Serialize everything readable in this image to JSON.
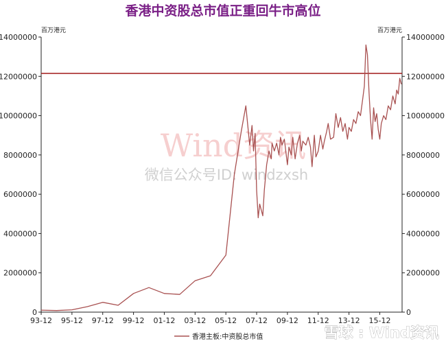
{
  "chart_data": {
    "type": "line",
    "title": "香港中资股总市值正重回牛市高位",
    "unit_left": "百万港元",
    "unit_right": "百万港元",
    "ylim": [
      0,
      14000000
    ],
    "y_ticks": [
      0,
      2000000,
      4000000,
      6000000,
      8000000,
      10000000,
      12000000,
      14000000
    ],
    "y_tick_labels": [
      "0",
      "2000000",
      "4000000",
      "6000000",
      "8000000",
      "10000000",
      "12000000",
      "14000000"
    ],
    "x_tick_labels": [
      "93-12",
      "95-12",
      "97-12",
      "99-12",
      "01-12",
      "03-12",
      "05-12",
      "07-12",
      "09-12",
      "11-12",
      "13-12",
      "15-12"
    ],
    "x_range": [
      1993.95,
      2017.4
    ],
    "reference_line": {
      "value": 12150000,
      "color": "#a01818"
    },
    "series": [
      {
        "name": "香港主板:中资股总市值",
        "color": "#a85050",
        "x": [
          1993.95,
          1994.95,
          1995.95,
          1996.95,
          1997.95,
          1998.95,
          1999.95,
          2000.95,
          2001.95,
          2002.95,
          2003.95,
          2004.95,
          2005.95,
          2006.5,
          2006.95,
          2007.25,
          2007.5,
          2007.65,
          2007.75,
          2007.85,
          2007.95,
          2008.05,
          2008.15,
          2008.35,
          2008.45,
          2008.6,
          2008.75,
          2008.9,
          2008.95,
          2009.1,
          2009.25,
          2009.4,
          2009.5,
          2009.6,
          2009.75,
          2009.95,
          2010.05,
          2010.2,
          2010.3,
          2010.45,
          2010.6,
          2010.75,
          2010.85,
          2010.95,
          2011.15,
          2011.3,
          2011.45,
          2011.55,
          2011.7,
          2011.8,
          2011.95,
          2012.1,
          2012.25,
          2012.35,
          2012.5,
          2012.6,
          2012.75,
          2012.95,
          2013.1,
          2013.25,
          2013.4,
          2013.55,
          2013.7,
          2013.85,
          2013.95,
          2014.1,
          2014.25,
          2014.4,
          2014.55,
          2014.7,
          2014.85,
          2014.95,
          2015.05,
          2015.15,
          2015.25,
          2015.35,
          2015.45,
          2015.55,
          2015.65,
          2015.75,
          2015.85,
          2015.95,
          2016.05,
          2016.2,
          2016.35,
          2016.5,
          2016.65,
          2016.8,
          2016.95,
          2017.05,
          2017.15,
          2017.25,
          2017.35
        ],
        "values": [
          100000,
          80000,
          120000,
          280000,
          500000,
          350000,
          950000,
          1250000,
          950000,
          900000,
          1600000,
          1850000,
          2900000,
          7000000,
          9200000,
          10500000,
          8500000,
          9500000,
          8200000,
          9100000,
          6200000,
          4800000,
          5500000,
          4900000,
          6200000,
          7500000,
          8200000,
          7800000,
          8600000,
          8200000,
          8600000,
          8000000,
          8900000,
          8500000,
          8800000,
          7500000,
          8400000,
          8000000,
          8900000,
          7800000,
          8600000,
          9000000,
          8200000,
          8700000,
          8500000,
          8900000,
          8400000,
          7400000,
          9000000,
          7900000,
          8200000,
          9000000,
          8300000,
          8700000,
          9200000,
          9600000,
          8800000,
          8900000,
          10100000,
          9400000,
          9900000,
          9200000,
          9600000,
          8800000,
          9400000,
          9200000,
          9800000,
          9600000,
          10200000,
          10000000,
          10900000,
          11500000,
          13600000,
          13100000,
          11200000,
          9800000,
          8800000,
          10400000,
          9700000,
          10100000,
          9300000,
          8800000,
          9600000,
          10000000,
          9800000,
          10500000,
          10300000,
          11000000,
          10600000,
          11300000,
          11100000,
          11900000,
          11600000
        ]
      }
    ],
    "legend_position": "bottom"
  },
  "watermark": {
    "brand": "Wind资讯",
    "sub": "微信公众号ID: windzxsh"
  },
  "footer_credit": "雪球 : Wind资讯"
}
